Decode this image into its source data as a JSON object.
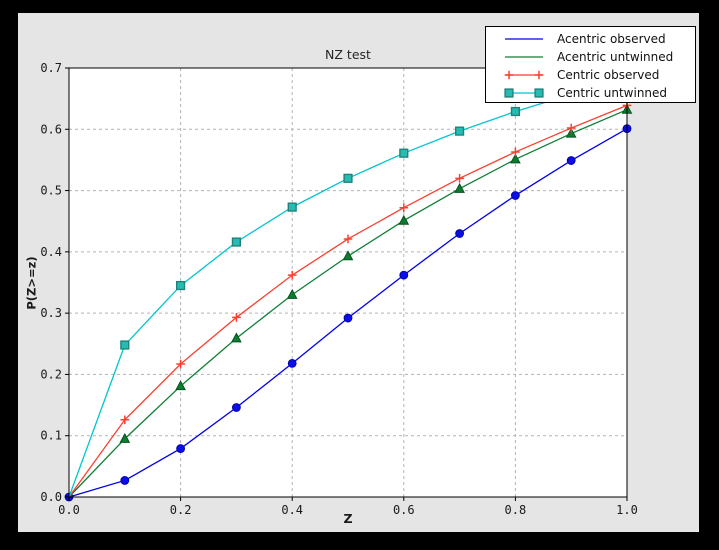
{
  "chart_data": {
    "type": "line",
    "title": "NZ test",
    "xlabel": "Z",
    "ylabel": "P(Z>=z)",
    "xlim": [
      0.0,
      1.0
    ],
    "ylim": [
      0.0,
      0.7
    ],
    "xticks": [
      "0.0",
      "0.2",
      "0.4",
      "0.6",
      "0.8",
      "1.0"
    ],
    "yticks": [
      "0.0",
      "0.1",
      "0.2",
      "0.3",
      "0.4",
      "0.5",
      "0.6",
      "0.7"
    ],
    "grid": "dashed",
    "legend_position": "upper-right",
    "x": [
      0.0,
      0.1,
      0.2,
      0.3,
      0.4,
      0.5,
      0.6,
      0.7,
      0.8,
      0.9,
      1.0
    ],
    "series": [
      {
        "name": "Acentric observed",
        "color": "#0000ee",
        "marker": "circle",
        "marker_fill": "#0d0de6",
        "marker_edge": "#0000b0",
        "first_marker_x": 0.0,
        "legend_markers": 0,
        "values": [
          0.0,
          0.027,
          0.079,
          0.146,
          0.218,
          0.292,
          0.362,
          0.43,
          0.492,
          0.549,
          0.601
        ]
      },
      {
        "name": "Acentric untwinned",
        "color": "#0e7f33",
        "marker": "triangle-up",
        "marker_fill": "#0c7d30",
        "marker_edge": "#06511e",
        "first_marker_x": 0.1,
        "legend_markers": 0,
        "values": [
          0.0,
          0.095,
          0.181,
          0.259,
          0.33,
          0.393,
          0.451,
          0.503,
          0.551,
          0.593,
          0.632
        ]
      },
      {
        "name": "Centric observed",
        "color": "#fa3f2f",
        "marker": "plus",
        "marker_fill": "#fa3f2f",
        "marker_edge": "#fa3f2f",
        "first_marker_x": 0.1,
        "legend_markers": 2,
        "values": [
          0.0,
          0.126,
          0.217,
          0.293,
          0.362,
          0.421,
          0.472,
          0.52,
          0.563,
          0.602,
          0.639
        ]
      },
      {
        "name": "Centric untwinned",
        "color": "#00c5ce",
        "marker": "square",
        "marker_fill": "#27bcb2",
        "marker_edge": "#1f837c",
        "first_marker_x": 0.1,
        "legend_markers": 2,
        "values": [
          0.0,
          0.248,
          0.345,
          0.416,
          0.473,
          0.52,
          0.561,
          0.597,
          0.629,
          0.657,
          0.683
        ]
      }
    ]
  },
  "colors": {
    "canvas": "#000000",
    "figure_background": "#e5e5e5",
    "plot_background": "#ffffff",
    "grid": "#b3b3b3",
    "axis": "#000000",
    "tick_label": "#1a1a1a",
    "title": "#262626",
    "legend_background": "#ffffff",
    "legend_border": "#000000"
  }
}
